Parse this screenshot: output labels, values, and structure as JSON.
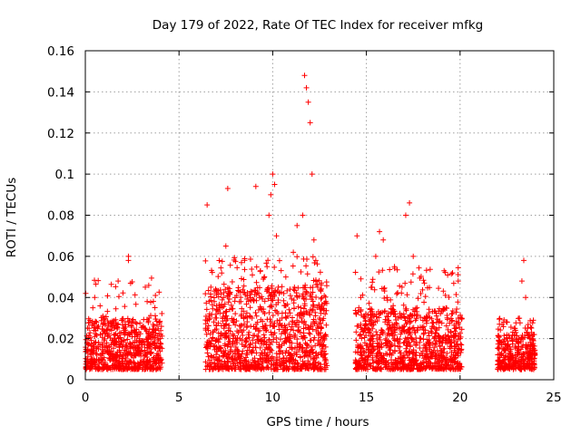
{
  "chart_data": {
    "type": "scatter",
    "title": "Day 179 of 2022, Rate Of TEC Index for receiver mfkg",
    "xlabel": "GPS time / hours",
    "ylabel": "ROTI / TECUs",
    "xlim": [
      0,
      25
    ],
    "ylim": [
      0,
      0.16
    ],
    "x_ticks": [
      0,
      5,
      10,
      15,
      20,
      25
    ],
    "x_tick_labels": [
      "0",
      "5",
      "10",
      "15",
      "20",
      "25"
    ],
    "y_ticks": [
      0,
      0.02,
      0.04,
      0.06,
      0.08,
      0.1,
      0.12,
      0.14,
      0.16
    ],
    "y_tick_labels": [
      "0",
      "0.02",
      "0.04",
      "0.06",
      "0.08",
      "0.1",
      "0.12",
      "0.14",
      "0.16"
    ],
    "grid": true,
    "marker": "+",
    "color": "#ff0000",
    "series": [
      {
        "points": [
          [
            0.1,
            0.018
          ],
          [
            0.2,
            0.025
          ],
          [
            0.3,
            0.012
          ],
          [
            0.4,
            0.035
          ],
          [
            0.5,
            0.04
          ],
          [
            0.6,
            0.028
          ],
          [
            0.7,
            0.015
          ],
          [
            0.8,
            0.022
          ],
          [
            0.9,
            0.01
          ],
          [
            1.0,
            0.019
          ],
          [
            1.2,
            0.014
          ],
          [
            1.4,
            0.024
          ],
          [
            1.6,
            0.011
          ],
          [
            1.8,
            0.02
          ],
          [
            2.0,
            0.016
          ],
          [
            2.2,
            0.013
          ],
          [
            2.3,
            0.06
          ],
          [
            2.3,
            0.058
          ],
          [
            2.5,
            0.021
          ],
          [
            2.7,
            0.012
          ],
          [
            2.9,
            0.019
          ],
          [
            3.1,
            0.026
          ],
          [
            3.2,
            0.045
          ],
          [
            3.3,
            0.038
          ],
          [
            3.4,
            0.03
          ],
          [
            3.5,
            0.015
          ],
          [
            3.6,
            0.022
          ],
          [
            3.7,
            0.018
          ],
          [
            3.9,
            0.012
          ],
          [
            4.0,
            0.02
          ],
          [
            6.5,
            0.085
          ],
          [
            6.6,
            0.03
          ],
          [
            6.7,
            0.045
          ],
          [
            6.8,
            0.02
          ],
          [
            7.0,
            0.015
          ],
          [
            7.2,
            0.035
          ],
          [
            7.4,
            0.025
          ],
          [
            7.5,
            0.065
          ],
          [
            7.6,
            0.093
          ],
          [
            7.7,
            0.042
          ],
          [
            7.9,
            0.028
          ],
          [
            8.1,
            0.018
          ],
          [
            8.3,
            0.038
          ],
          [
            8.5,
            0.058
          ],
          [
            8.7,
            0.022
          ],
          [
            8.9,
            0.03
          ],
          [
            9.1,
            0.094
          ],
          [
            9.3,
            0.04
          ],
          [
            9.5,
            0.025
          ],
          [
            9.7,
            0.055
          ],
          [
            9.8,
            0.08
          ],
          [
            9.9,
            0.09
          ],
          [
            10.0,
            0.1
          ],
          [
            10.1,
            0.095
          ],
          [
            10.2,
            0.07
          ],
          [
            10.3,
            0.045
          ],
          [
            10.5,
            0.03
          ],
          [
            10.7,
            0.05
          ],
          [
            10.9,
            0.022
          ],
          [
            11.1,
            0.062
          ],
          [
            11.3,
            0.075
          ],
          [
            11.5,
            0.035
          ],
          [
            11.6,
            0.08
          ],
          [
            11.7,
            0.148
          ],
          [
            11.8,
            0.142
          ],
          [
            11.9,
            0.135
          ],
          [
            12.0,
            0.125
          ],
          [
            12.1,
            0.1
          ],
          [
            12.2,
            0.068
          ],
          [
            12.3,
            0.058
          ],
          [
            12.4,
            0.045
          ],
          [
            12.5,
            0.03
          ],
          [
            12.7,
            0.02
          ],
          [
            14.5,
            0.07
          ],
          [
            14.7,
            0.04
          ],
          [
            14.9,
            0.025
          ],
          [
            15.1,
            0.015
          ],
          [
            15.3,
            0.045
          ],
          [
            15.5,
            0.06
          ],
          [
            15.7,
            0.072
          ],
          [
            15.9,
            0.068
          ],
          [
            16.1,
            0.04
          ],
          [
            16.3,
            0.025
          ],
          [
            16.5,
            0.055
          ],
          [
            16.7,
            0.03
          ],
          [
            16.9,
            0.045
          ],
          [
            17.1,
            0.08
          ],
          [
            17.3,
            0.086
          ],
          [
            17.5,
            0.06
          ],
          [
            17.7,
            0.035
          ],
          [
            17.9,
            0.02
          ],
          [
            18.1,
            0.03
          ],
          [
            18.3,
            0.018
          ],
          [
            18.5,
            0.025
          ],
          [
            18.7,
            0.012
          ],
          [
            18.9,
            0.02
          ],
          [
            19.1,
            0.015
          ],
          [
            19.3,
            0.01
          ],
          [
            19.5,
            0.018
          ],
          [
            19.7,
            0.025
          ],
          [
            19.9,
            0.03
          ],
          [
            20.0,
            0.02
          ],
          [
            22.1,
            0.027
          ],
          [
            22.3,
            0.015
          ],
          [
            22.5,
            0.02
          ],
          [
            22.7,
            0.012
          ],
          [
            22.9,
            0.025
          ],
          [
            23.1,
            0.018
          ],
          [
            23.3,
            0.048
          ],
          [
            23.4,
            0.058
          ],
          [
            23.5,
            0.04
          ],
          [
            23.6,
            0.025
          ],
          [
            23.7,
            0.015
          ],
          [
            23.8,
            0.01
          ],
          [
            23.9,
            0.022
          ],
          [
            24.0,
            0.012
          ]
        ]
      }
    ],
    "segments": [
      {
        "x0": 0.0,
        "x1": 4.1,
        "base_lo": 0.005,
        "base_hi": 0.03,
        "peak": 0.05
      },
      {
        "x0": 6.4,
        "x1": 12.9,
        "base_lo": 0.005,
        "base_hi": 0.045,
        "peak": 0.06
      },
      {
        "x0": 14.4,
        "x1": 20.1,
        "base_lo": 0.005,
        "base_hi": 0.035,
        "peak": 0.055
      },
      {
        "x0": 22.0,
        "x1": 24.0,
        "base_lo": 0.005,
        "base_hi": 0.022,
        "peak": 0.03
      }
    ]
  }
}
